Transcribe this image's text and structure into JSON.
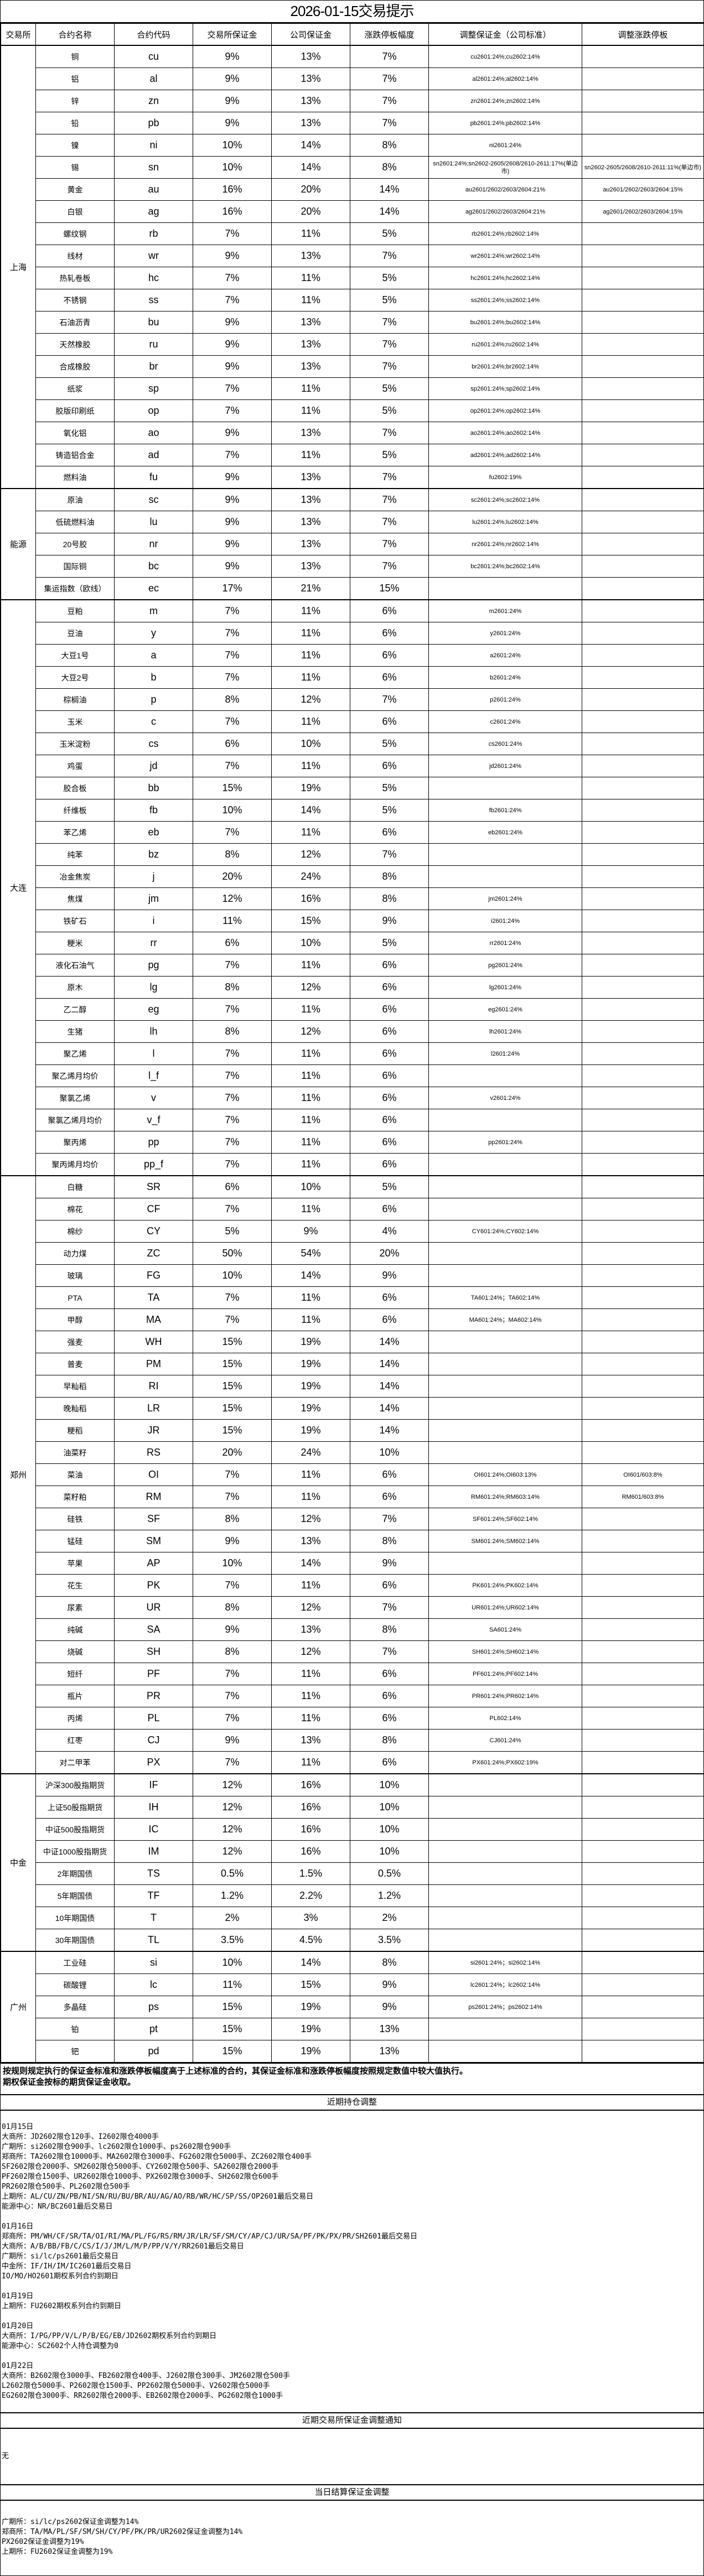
{
  "title": "2026-01-15交易提示",
  "headers": [
    "交易所",
    "合约名称",
    "合约代码",
    "交易所保证金",
    "公司保证金",
    "涨跌停板幅度",
    "调整保证金（公司标准）",
    "调整涨跌停板"
  ],
  "groups": [
    {
      "exchange": "上海",
      "rows": [
        [
          "铜",
          "cu",
          "9%",
          "13%",
          "7%",
          "cu2601:24%;cu2602:14%",
          ""
        ],
        [
          "铝",
          "al",
          "9%",
          "13%",
          "7%",
          "al2601:24%;al2602:14%",
          ""
        ],
        [
          "锌",
          "zn",
          "9%",
          "13%",
          "7%",
          "zn2601:24%;zn2602:14%",
          ""
        ],
        [
          "铅",
          "pb",
          "9%",
          "13%",
          "7%",
          "pb2601:24%;pb2602:14%",
          ""
        ],
        [
          "镍",
          "ni",
          "10%",
          "14%",
          "8%",
          "ni2601:24%",
          ""
        ],
        [
          "锡",
          "sn",
          "10%",
          "14%",
          "8%",
          "sn2601:24%;sn2602-2605/2608/2610-2611:17%(单边市)",
          "sn2602-2605/2608/2610-2611:11%(单边市)"
        ],
        [
          "黄金",
          "au",
          "16%",
          "20%",
          "14%",
          "au2601/2602/2603/2604:21%",
          "au2601/2602/2603/2604:15%"
        ],
        [
          "白银",
          "ag",
          "16%",
          "20%",
          "14%",
          "ag2601/2602/2603/2604:21%",
          "ag2601/2602/2603/2604:15%"
        ],
        [
          "螺纹钢",
          "rb",
          "7%",
          "11%",
          "5%",
          "rb2601:24%;rb2602:14%",
          ""
        ],
        [
          "线材",
          "wr",
          "9%",
          "13%",
          "7%",
          "wr2601:24%;wr2602:14%",
          ""
        ],
        [
          "热轧卷板",
          "hc",
          "7%",
          "11%",
          "5%",
          "hc2601:24%;hc2602:14%",
          ""
        ],
        [
          "不锈钢",
          "ss",
          "7%",
          "11%",
          "5%",
          "ss2601:24%;ss2602:14%",
          ""
        ],
        [
          "石油沥青",
          "bu",
          "9%",
          "13%",
          "7%",
          "bu2601:24%;bu2602:14%",
          ""
        ],
        [
          "天然橡胶",
          "ru",
          "9%",
          "13%",
          "7%",
          "ru2601:24%;ru2602:14%",
          ""
        ],
        [
          "合成橡胶",
          "br",
          "9%",
          "13%",
          "7%",
          "br2601:24%;br2602:14%",
          ""
        ],
        [
          "纸浆",
          "sp",
          "7%",
          "11%",
          "5%",
          "sp2601:24%;sp2602:14%",
          ""
        ],
        [
          "胶版印刷纸",
          "op",
          "7%",
          "11%",
          "5%",
          "op2601:24%;op2602:14%",
          ""
        ],
        [
          "氧化铝",
          "ao",
          "9%",
          "13%",
          "7%",
          "ao2601:24%;ao2602:14%",
          ""
        ],
        [
          "铸造铝合金",
          "ad",
          "7%",
          "11%",
          "5%",
          "ad2601:24%;ad2602:14%",
          ""
        ],
        [
          "燃料油",
          "fu",
          "9%",
          "13%",
          "7%",
          "fu2602:19%",
          ""
        ]
      ]
    },
    {
      "exchange": "能源",
      "rows": [
        [
          "原油",
          "sc",
          "9%",
          "13%",
          "7%",
          "sc2601:24%;sc2602:14%",
          ""
        ],
        [
          "低硫燃料油",
          "lu",
          "9%",
          "13%",
          "7%",
          "lu2601:24%;lu2602:14%",
          ""
        ],
        [
          "20号胶",
          "nr",
          "9%",
          "13%",
          "7%",
          "nr2601:24%;nr2602:14%",
          ""
        ],
        [
          "国际铜",
          "bc",
          "9%",
          "13%",
          "7%",
          "bc2601:24%;bc2602:14%",
          ""
        ],
        [
          "集运指数（欧线）",
          "ec",
          "17%",
          "21%",
          "15%",
          "",
          ""
        ]
      ]
    },
    {
      "exchange": "大连",
      "rows": [
        [
          "豆粕",
          "m",
          "7%",
          "11%",
          "6%",
          "m2601:24%",
          ""
        ],
        [
          "豆油",
          "y",
          "7%",
          "11%",
          "6%",
          "y2601:24%",
          ""
        ],
        [
          "大豆1号",
          "a",
          "7%",
          "11%",
          "6%",
          "a2601:24%",
          ""
        ],
        [
          "大豆2号",
          "b",
          "7%",
          "11%",
          "6%",
          "b2601:24%",
          ""
        ],
        [
          "棕榈油",
          "p",
          "8%",
          "12%",
          "7%",
          "p2601:24%",
          ""
        ],
        [
          "玉米",
          "c",
          "7%",
          "11%",
          "6%",
          "c2601:24%",
          ""
        ],
        [
          "玉米淀粉",
          "cs",
          "6%",
          "10%",
          "5%",
          "cs2601:24%",
          ""
        ],
        [
          "鸡蛋",
          "jd",
          "7%",
          "11%",
          "6%",
          "jd2601:24%",
          ""
        ],
        [
          "胶合板",
          "bb",
          "15%",
          "19%",
          "5%",
          "",
          ""
        ],
        [
          "纤维板",
          "fb",
          "10%",
          "14%",
          "5%",
          "fb2601:24%",
          ""
        ],
        [
          "苯乙烯",
          "eb",
          "7%",
          "11%",
          "6%",
          "eb2601:24%",
          ""
        ],
        [
          "纯苯",
          "bz",
          "8%",
          "12%",
          "7%",
          "",
          ""
        ],
        [
          "冶金焦炭",
          "j",
          "20%",
          "24%",
          "8%",
          "",
          ""
        ],
        [
          "焦煤",
          "jm",
          "12%",
          "16%",
          "8%",
          "jm2601:24%",
          ""
        ],
        [
          "铁矿石",
          "i",
          "11%",
          "15%",
          "9%",
          "i2601:24%",
          ""
        ],
        [
          "粳米",
          "rr",
          "6%",
          "10%",
          "5%",
          "rr2601:24%",
          ""
        ],
        [
          "液化石油气",
          "pg",
          "7%",
          "11%",
          "6%",
          "pg2601:24%",
          ""
        ],
        [
          "原木",
          "lg",
          "8%",
          "12%",
          "6%",
          "lg2601:24%",
          ""
        ],
        [
          "乙二醇",
          "eg",
          "7%",
          "11%",
          "6%",
          "eg2601:24%",
          ""
        ],
        [
          "生猪",
          "lh",
          "8%",
          "12%",
          "6%",
          "lh2601:24%",
          ""
        ],
        [
          "聚乙烯",
          "l",
          "7%",
          "11%",
          "6%",
          "l2601:24%",
          ""
        ],
        [
          "聚乙烯月均价",
          "l_f",
          "7%",
          "11%",
          "6%",
          "",
          ""
        ],
        [
          "聚氯乙烯",
          "v",
          "7%",
          "11%",
          "6%",
          "v2601:24%",
          ""
        ],
        [
          "聚氯乙烯月均价",
          "v_f",
          "7%",
          "11%",
          "6%",
          "",
          ""
        ],
        [
          "聚丙烯",
          "pp",
          "7%",
          "11%",
          "6%",
          "pp2601:24%",
          ""
        ],
        [
          "聚丙烯月均价",
          "pp_f",
          "7%",
          "11%",
          "6%",
          "",
          ""
        ]
      ]
    },
    {
      "exchange": "郑州",
      "rows": [
        [
          "白糖",
          "SR",
          "6%",
          "10%",
          "5%",
          "",
          ""
        ],
        [
          "棉花",
          "CF",
          "7%",
          "11%",
          "6%",
          "",
          ""
        ],
        [
          "棉纱",
          "CY",
          "5%",
          "9%",
          "4%",
          "CY601:24%;CY602:14%",
          ""
        ],
        [
          "动力煤",
          "ZC",
          "50%",
          "54%",
          "20%",
          "",
          ""
        ],
        [
          "玻璃",
          "FG",
          "10%",
          "14%",
          "9%",
          "",
          ""
        ],
        [
          "PTA",
          "TA",
          "7%",
          "11%",
          "6%",
          "TA601:24%；TA602:14%",
          ""
        ],
        [
          "甲醇",
          "MA",
          "7%",
          "11%",
          "6%",
          "MA601:24%；MA602:14%",
          ""
        ],
        [
          "强麦",
          "WH",
          "15%",
          "19%",
          "14%",
          "",
          ""
        ],
        [
          "普麦",
          "PM",
          "15%",
          "19%",
          "14%",
          "",
          ""
        ],
        [
          "早籼稻",
          "RI",
          "15%",
          "19%",
          "14%",
          "",
          ""
        ],
        [
          "晚籼稻",
          "LR",
          "15%",
          "19%",
          "14%",
          "",
          ""
        ],
        [
          "粳稻",
          "JR",
          "15%",
          "19%",
          "14%",
          "",
          ""
        ],
        [
          "油菜籽",
          "RS",
          "20%",
          "24%",
          "10%",
          "",
          ""
        ],
        [
          "菜油",
          "OI",
          "7%",
          "11%",
          "6%",
          "OI601:24%;OI603:13%",
          "OI601/603:8%"
        ],
        [
          "菜籽粕",
          "RM",
          "7%",
          "11%",
          "6%",
          "RM601:24%;RM603:14%",
          "RM601/603:8%"
        ],
        [
          "硅铁",
          "SF",
          "8%",
          "12%",
          "7%",
          "SF601:24%;SF602:14%",
          ""
        ],
        [
          "锰硅",
          "SM",
          "9%",
          "13%",
          "8%",
          "SM601:24%;SM602:14%",
          ""
        ],
        [
          "苹果",
          "AP",
          "10%",
          "14%",
          "9%",
          "",
          ""
        ],
        [
          "花生",
          "PK",
          "7%",
          "11%",
          "6%",
          "PK601:24%;PK602:14%",
          ""
        ],
        [
          "尿素",
          "UR",
          "8%",
          "12%",
          "7%",
          "UR601:24%;UR602:14%",
          ""
        ],
        [
          "纯碱",
          "SA",
          "9%",
          "13%",
          "8%",
          "SA601:24%",
          ""
        ],
        [
          "烧碱",
          "SH",
          "8%",
          "12%",
          "7%",
          "SH601:24%;SH602:14%",
          ""
        ],
        [
          "短纤",
          "PF",
          "7%",
          "11%",
          "6%",
          "PF601:24%;PF602:14%",
          ""
        ],
        [
          "瓶片",
          "PR",
          "7%",
          "11%",
          "6%",
          "PR601:24%;PR602:14%",
          ""
        ],
        [
          "丙烯",
          "PL",
          "7%",
          "11%",
          "6%",
          "PL602:14%",
          ""
        ],
        [
          "红枣",
          "CJ",
          "9%",
          "13%",
          "8%",
          "CJ601:24%",
          ""
        ],
        [
          "对二甲苯",
          "PX",
          "7%",
          "11%",
          "6%",
          "PX601:24%;PX602:19%",
          ""
        ]
      ]
    },
    {
      "exchange": "中金",
      "rows": [
        [
          "沪深300股指期货",
          "IF",
          "12%",
          "16%",
          "10%",
          "",
          ""
        ],
        [
          "上证50股指期货",
          "IH",
          "12%",
          "16%",
          "10%",
          "",
          ""
        ],
        [
          "中证500股指期货",
          "IC",
          "12%",
          "16%",
          "10%",
          "",
          ""
        ],
        [
          "中证1000股指期货",
          "IM",
          "12%",
          "16%",
          "10%",
          "",
          ""
        ],
        [
          "2年期国债",
          "TS",
          "0.5%",
          "1.5%",
          "0.5%",
          "",
          ""
        ],
        [
          "5年期国债",
          "TF",
          "1.2%",
          "2.2%",
          "1.2%",
          "",
          ""
        ],
        [
          "10年期国债",
          "T",
          "2%",
          "3%",
          "2%",
          "",
          ""
        ],
        [
          "30年期国债",
          "TL",
          "3.5%",
          "4.5%",
          "3.5%",
          "",
          ""
        ]
      ]
    },
    {
      "exchange": "广州",
      "rows": [
        [
          "工业硅",
          "si",
          "10%",
          "14%",
          "8%",
          "si2601:24%；si2602:14%",
          ""
        ],
        [
          "碳酸锂",
          "lc",
          "11%",
          "15%",
          "9%",
          "lc2601:24%；lc2602:14%",
          ""
        ],
        [
          "多晶硅",
          "ps",
          "15%",
          "19%",
          "9%",
          "ps2601:24%；ps2602:14%",
          ""
        ],
        [
          "铂",
          "pt",
          "15%",
          "19%",
          "13%",
          "",
          ""
        ],
        [
          "钯",
          "pd",
          "15%",
          "19%",
          "13%",
          "",
          ""
        ]
      ]
    }
  ],
  "notes": [
    "按规则规定执行的保证金标准和涨跌停板幅度高于上述标准的合约，其保证金标准和涨跌停板幅度按照规定数值中较大值执行。",
    "期权保证金按标的期货保证金收取。"
  ],
  "holding": {
    "heading": "近期持仓调整",
    "lines": [
      "01月15日",
      "大商所：JD2602限仓120手、I2602限仓4000手",
      "广期所：si2602限仓900手、lc2602限仓1000手、ps2602限仓900手",
      "郑商所：TA2602限仓10000手、MA2602限仓3000手、FG2602限仓5000手、ZC2602限仓400手",
      "SF2602限仓2000手、SM2602限仓5000手、CY2602限仓500手、SA2602限仓2000手",
      "PF2602限仓1500手、UR2602限仓1000手、PX2602限仓3000手、SH2602限仓600手",
      "PR2602限仓500手、PL2602限仓500手",
      "上期所：AL/CU/ZN/PB/NI/SN/RU/BU/BR/AU/AG/AO/RB/WR/HC/SP/SS/OP2601最后交易日",
      "能源中心：NR/BC2601最后交易日",
      "",
      "01月16日",
      "郑商所：PM/WH/CF/SR/TA/OI/RI/MA/PL/FG/RS/RM/JR/LR/SF/SM/CY/AP/CJ/UR/SA/PF/PK/PX/PR/SH2601最后交易日",
      "大商所：A/B/BB/FB/C/CS/I/J/JM/L/M/P/PP/V/Y/RR2601最后交易日",
      "广期所：si/lc/ps2601最后交易日",
      "中金所：IF/IH/IM/IC2601最后交易日",
      "IO/MO/HO2601期权系列合约到期日",
      "",
      "01月19日",
      "上期所：FU2602期权系列合约到期日",
      "",
      "01月20日",
      "大商所：I/PG/PP/V/L/P/B/EG/EB/JD2602期权系列合约到期日",
      "能源中心：SC2602个人持仓调整为0",
      "",
      "01月22日",
      "大商所：B2602限仓3000手、FB2602限仓400手、J2602限仓300手、JM2602限仓500手",
      "L2602限仓5000手、P2602限仓1500手、PP2602限仓5000手、V2602限仓5000手",
      "EG2602限仓3000手、RR2602限仓2000手、EB2602限仓2000手、PG2602限仓1000手"
    ]
  },
  "exchange_notice": {
    "heading": "近期交易所保证金调整通知",
    "body": "无"
  },
  "settlement": {
    "heading": "当日结算保证金调整",
    "lines": [
      "广期所：si/lc/ps2602保证金调整为14%",
      "郑商所：TA/MA/PL/SF/SM/SH/CY/PF/PK/PR/UR2602保证金调整为14%",
      "PX2602保证金调整为19%",
      "上期所：FU2602保证金调整为19%"
    ]
  }
}
